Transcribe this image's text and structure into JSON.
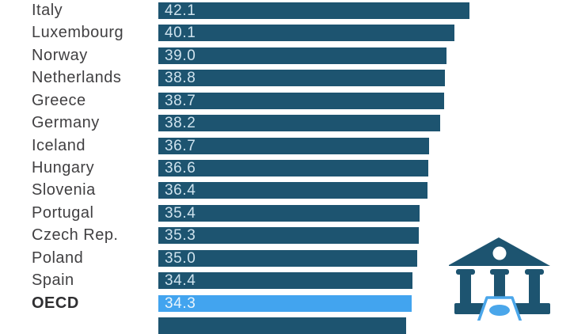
{
  "chart_data": {
    "type": "bar",
    "orientation": "horizontal",
    "title": "",
    "axis_visible": false,
    "grid": false,
    "legend": "none",
    "categories": [
      "Italy",
      "Luxembourg",
      "Norway",
      "Netherlands",
      "Greece",
      "Germany",
      "Iceland",
      "Hungary",
      "Slovenia",
      "Portugal",
      "Czech Rep.",
      "Poland",
      "Spain",
      "OECD"
    ],
    "values": [
      42.1,
      40.1,
      39.0,
      38.8,
      38.7,
      38.2,
      36.7,
      36.6,
      36.4,
      35.4,
      35.3,
      35.0,
      34.4,
      34.3
    ],
    "value_decimals": 1,
    "highlight_category": "OECD",
    "partial_bottom_bar": {
      "cutoff": true,
      "estimated_value": 33.5
    }
  },
  "colors": {
    "background": "#ffffff",
    "bar": "#1d5470",
    "bar_highlight": "#42a4ef",
    "value_text": "#cfe3ee",
    "label_text": "#414042",
    "icon": "#1d5470",
    "banknote": "#4aa6ea"
  },
  "icons": {
    "bank": "bank-icon",
    "banknote": "banknote-icon"
  }
}
